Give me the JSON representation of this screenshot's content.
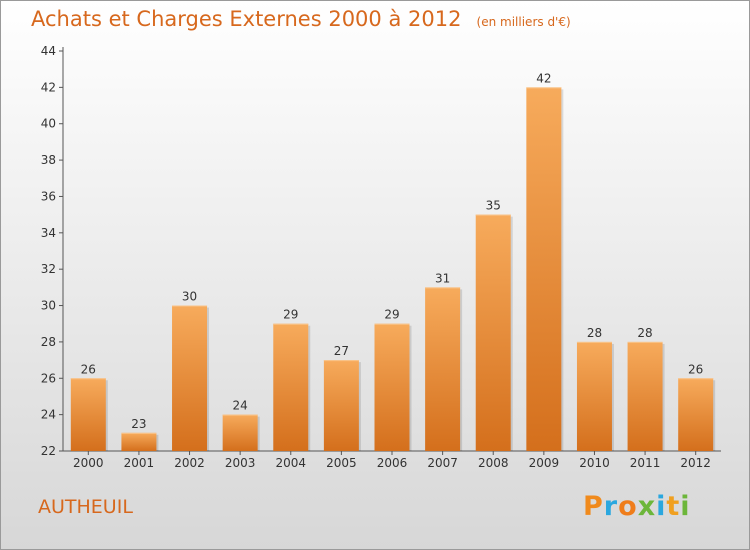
{
  "header": {
    "title": "Achats et Charges Externes 2000 à 2012",
    "unit": "(en milliers d'€)"
  },
  "footer": {
    "city": "AUTHEUIL",
    "brand": "Proxiti",
    "brand_colors": [
      "#f08a1c",
      "#2aa7df",
      "#ef7d1a",
      "#6cb63a",
      "#2aa7df",
      "#f0a020",
      "#6cb63a"
    ]
  },
  "colors": {
    "accent": "#d7681d",
    "bar_light": "#f5a659",
    "bar_dark": "#d46f1c",
    "axis": "#555555"
  },
  "chart_data": {
    "type": "bar",
    "title": "Achats et Charges Externes 2000 à 2012",
    "subtitle": "(en milliers d'€)",
    "categories": [
      "2000",
      "2001",
      "2002",
      "2003",
      "2004",
      "2005",
      "2006",
      "2007",
      "2008",
      "2009",
      "2010",
      "2011",
      "2012"
    ],
    "values": [
      26,
      23,
      30,
      24,
      29,
      27,
      29,
      31,
      35,
      42,
      28,
      28,
      26
    ],
    "ylim": [
      22,
      44
    ],
    "yticks": [
      22,
      24,
      26,
      28,
      30,
      32,
      34,
      36,
      38,
      40,
      42,
      44
    ],
    "grid": false,
    "legend": "none"
  }
}
